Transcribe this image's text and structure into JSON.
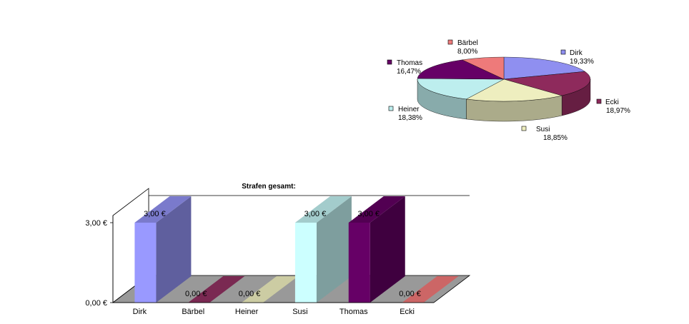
{
  "chart_data": [
    {
      "type": "pie",
      "title": "",
      "slices": [
        {
          "label": "Dirk",
          "value": 19.33,
          "value_label": "19,33%",
          "color": "#8f8ff0"
        },
        {
          "label": "Ecki",
          "value": 18.97,
          "value_label": "18,97%",
          "color": "#8e2a5c"
        },
        {
          "label": "Susi",
          "value": 18.85,
          "value_label": "18,85%",
          "color": "#eeeebf"
        },
        {
          "label": "Heiner",
          "value": 18.38,
          "value_label": "18,38%",
          "color": "#bdeeee"
        },
        {
          "label": "Thomas",
          "value": 16.47,
          "value_label": "16,47%",
          "color": "#660066"
        },
        {
          "label": "Bärbel",
          "value": 8.0,
          "value_label": "8,00%",
          "color": "#ee7a7a"
        }
      ],
      "legend": "labels next to slices"
    },
    {
      "type": "bar",
      "title": "Strafen gesamt:",
      "categories": [
        "Dirk",
        "Bärbel",
        "Heiner",
        "Susi",
        "Thomas",
        "Ecki"
      ],
      "values": [
        3.0,
        0.0,
        0.0,
        3.0,
        3.0,
        0.0
      ],
      "value_labels": [
        "3,00 €",
        "0,00 €",
        "0,00 €",
        "3,00 €",
        "3,00 €",
        "0,00 €"
      ],
      "colors": [
        "#9999ff",
        "#993366",
        "#ffffcc",
        "#ccffff",
        "#660066",
        "#ff8080"
      ],
      "ylim": [
        0,
        3
      ],
      "yticks": [
        0,
        3
      ],
      "ytick_labels": [
        "0,00 €",
        "3,00 €"
      ],
      "xlabel": "",
      "ylabel": "",
      "grid": false,
      "style": "3d"
    }
  ]
}
